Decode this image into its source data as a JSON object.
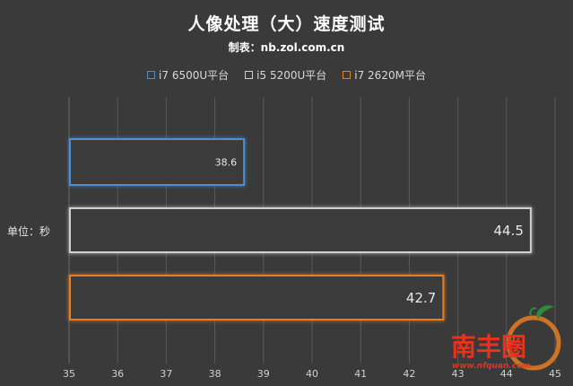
{
  "header": {
    "title": "人像处理（大）速度测试",
    "subtitle": "制表：nb.zol.com.cn"
  },
  "unit_label": "单位：秒",
  "watermark": {
    "text": "南丰圈",
    "url_text": "www.nfquan.com"
  },
  "colors": {
    "background": "#3a3a3a",
    "grid": "#5a5a5a",
    "series": [
      "#4e8fcf",
      "#cfcfcf",
      "#e67e22"
    ]
  },
  "chart_data": {
    "type": "bar",
    "orientation": "horizontal",
    "title": "人像处理（大）速度测试",
    "subtitle": "制表：nb.zol.com.cn",
    "unit": "单位：秒",
    "xlim": [
      35,
      45
    ],
    "xticks": [
      "35",
      "36",
      "37",
      "38",
      "39",
      "40",
      "41",
      "42",
      "43",
      "44",
      "45"
    ],
    "grid": true,
    "legend_position": "top",
    "series": [
      {
        "name": "i7 6500U平台",
        "value": 38.6,
        "label": "38.6",
        "color": "#4e8fcf"
      },
      {
        "name": "i5 5200U平台",
        "value": 44.5,
        "label": "44.5",
        "color": "#cfcfcf"
      },
      {
        "name": "i7 2620M平台",
        "value": 42.7,
        "label": "42.7",
        "color": "#e67e22"
      }
    ]
  }
}
